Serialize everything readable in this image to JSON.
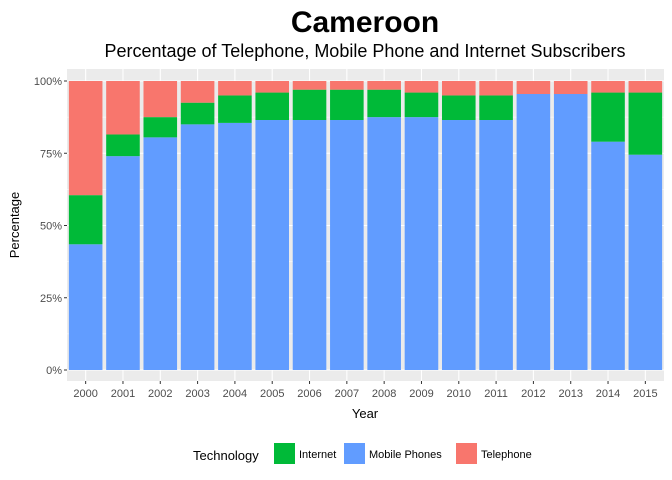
{
  "chart_data": {
    "type": "bar",
    "stacked": true,
    "title": "Cameroon",
    "subtitle": "Percentage of Telephone, Mobile Phone and Internet Subscribers",
    "xlabel": "Year",
    "ylabel": "Percentage",
    "ylim": [
      0,
      100
    ],
    "yticks": [
      "0%",
      "25%",
      "50%",
      "75%",
      "100%"
    ],
    "ytick_values": [
      0,
      25,
      50,
      75,
      100
    ],
    "categories": [
      "2000",
      "2001",
      "2002",
      "2003",
      "2004",
      "2005",
      "2006",
      "2007",
      "2008",
      "2009",
      "2010",
      "2011",
      "2012",
      "2013",
      "2014",
      "2015"
    ],
    "series": [
      {
        "name": "Mobile Phones",
        "color": "#619CFF",
        "values": [
          43.5,
          74,
          80.5,
          85,
          85.5,
          86.5,
          86.5,
          86.5,
          87.5,
          87.5,
          86.5,
          86.5,
          95.5,
          95.5,
          79,
          74.5
        ]
      },
      {
        "name": "Internet",
        "color": "#00BA38",
        "values": [
          17,
          7.5,
          7,
          7.5,
          9.5,
          9.5,
          10.5,
          10.5,
          9.5,
          8.5,
          8.5,
          8.5,
          0,
          0,
          17,
          21.5
        ]
      },
      {
        "name": "Telephone",
        "color": "#F8766D",
        "values": [
          39.5,
          18.5,
          12.5,
          7.5,
          5,
          4,
          3,
          3,
          3,
          4,
          5,
          5,
          4.5,
          4.5,
          4,
          4
        ]
      }
    ],
    "legend": {
      "title": "Technology",
      "position": "bottom",
      "entries": [
        {
          "name": "Internet",
          "color": "#00BA38"
        },
        {
          "name": "Mobile Phones",
          "color": "#619CFF"
        },
        {
          "name": "Telephone",
          "color": "#F8766D"
        }
      ]
    },
    "grid": true,
    "panel_background": "#EBEBEB"
  }
}
